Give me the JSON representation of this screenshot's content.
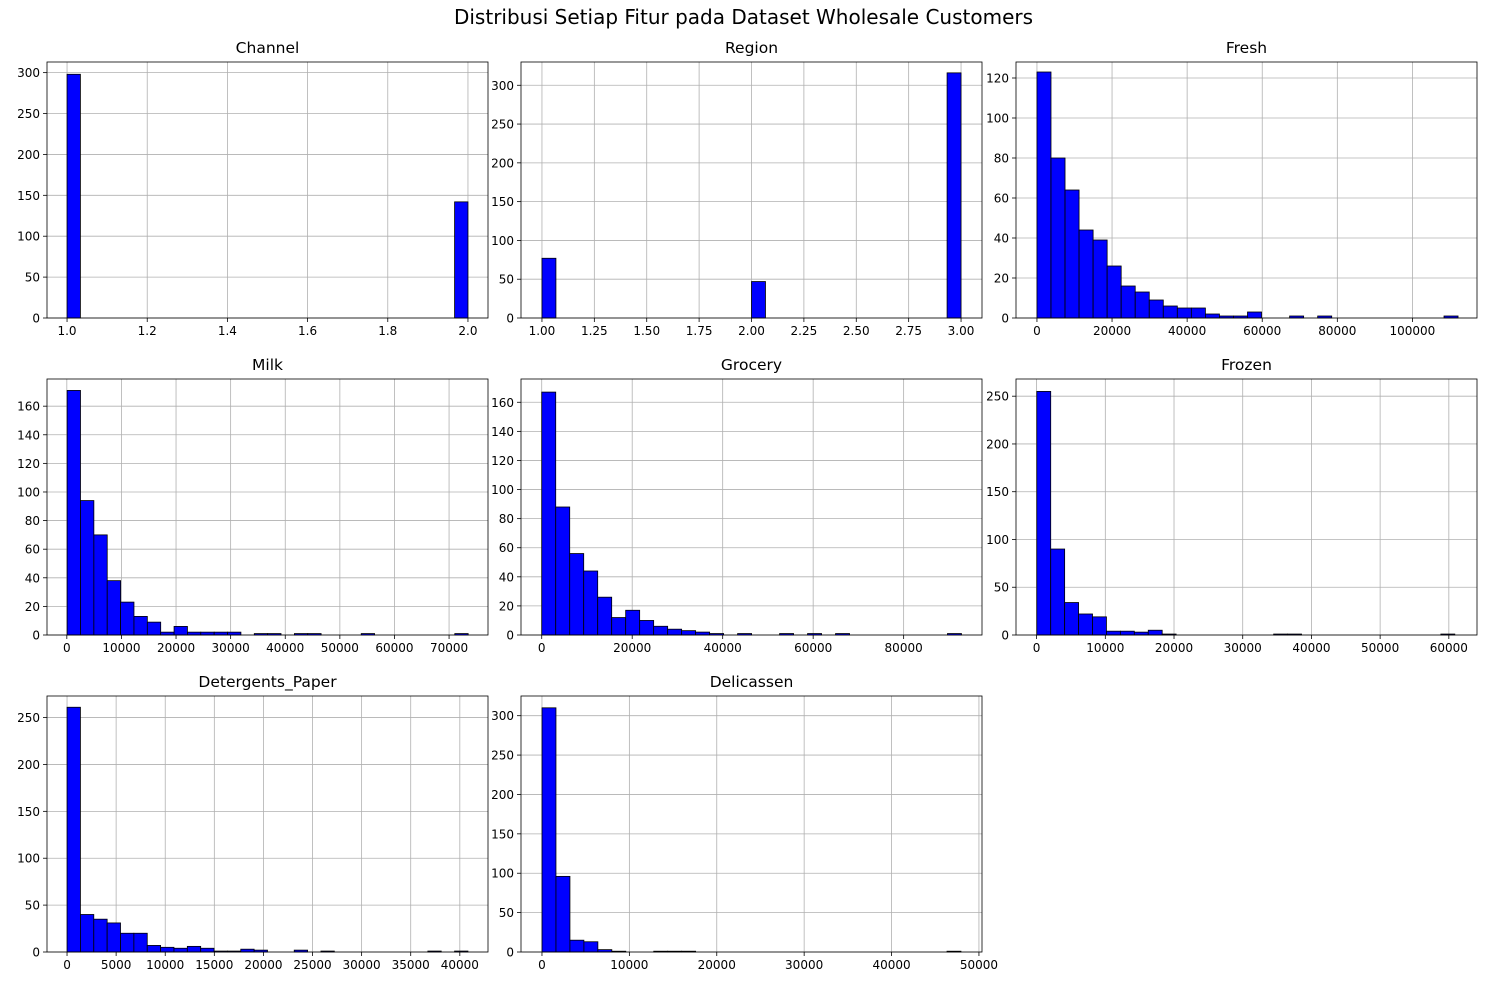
{
  "figure": {
    "title": "Distribusi Setiap Fitur pada Dataset Wholesale Customers",
    "bar_color": "#0000ff",
    "edge_color": "#000000",
    "grid_color": "#b0b0b0"
  },
  "chart_data": [
    {
      "type": "bar",
      "title": "Channel",
      "grid": true,
      "xlim": [
        0.95,
        2.05
      ],
      "ylim": [
        0,
        313
      ],
      "xticks": [
        1.0,
        1.2,
        1.4,
        1.6,
        1.8,
        2.0
      ],
      "xtick_labels": [
        "1.0",
        "1.2",
        "1.4",
        "1.6",
        "1.8",
        "2.0"
      ],
      "yticks": [
        0,
        50,
        100,
        150,
        200,
        250,
        300
      ],
      "bin_edges": [
        1.0,
        2.0
      ],
      "bins": 30,
      "counts": [
        298,
        0,
        0,
        0,
        0,
        0,
        0,
        0,
        0,
        0,
        0,
        0,
        0,
        0,
        0,
        0,
        0,
        0,
        0,
        0,
        0,
        0,
        0,
        0,
        0,
        0,
        0,
        0,
        0,
        142
      ]
    },
    {
      "type": "bar",
      "title": "Region",
      "grid": true,
      "xlim": [
        0.9,
        3.1
      ],
      "ylim": [
        0,
        330
      ],
      "xticks": [
        1.0,
        1.25,
        1.5,
        1.75,
        2.0,
        2.25,
        2.5,
        2.75,
        3.0
      ],
      "xtick_labels": [
        "1.00",
        "1.25",
        "1.50",
        "1.75",
        "2.00",
        "2.25",
        "2.50",
        "2.75",
        "3.00"
      ],
      "yticks": [
        0,
        50,
        100,
        150,
        200,
        250,
        300
      ],
      "bin_edges": [
        1.0,
        3.0
      ],
      "bins": 30,
      "counts": [
        77,
        0,
        0,
        0,
        0,
        0,
        0,
        0,
        0,
        0,
        0,
        0,
        0,
        0,
        0,
        47,
        0,
        0,
        0,
        0,
        0,
        0,
        0,
        0,
        0,
        0,
        0,
        0,
        0,
        316
      ]
    },
    {
      "type": "bar",
      "title": "Fresh",
      "grid": true,
      "xlim": [
        -5580,
        117200
      ],
      "ylim": [
        0,
        128
      ],
      "xticks": [
        0,
        20000,
        40000,
        60000,
        80000,
        100000
      ],
      "xtick_labels": [
        "0",
        "20000",
        "40000",
        "60000",
        "80000",
        "100000"
      ],
      "yticks": [
        0,
        20,
        40,
        60,
        80,
        100,
        120
      ],
      "bin_edges": [
        3,
        112151
      ],
      "bins": 30,
      "counts": [
        123,
        80,
        64,
        44,
        39,
        26,
        16,
        13,
        9,
        6,
        5,
        5,
        2,
        1,
        1,
        3,
        0,
        0,
        1,
        0,
        1,
        0,
        0,
        0,
        0,
        0,
        0,
        0,
        0,
        1
      ]
    },
    {
      "type": "bar",
      "title": "Milk",
      "grid": true,
      "xlim": [
        -3630,
        77130
      ],
      "ylim": [
        0,
        179
      ],
      "xticks": [
        0,
        10000,
        20000,
        30000,
        40000,
        50000,
        60000,
        70000
      ],
      "xtick_labels": [
        "0",
        "10000",
        "20000",
        "30000",
        "40000",
        "50000",
        "60000",
        "70000"
      ],
      "yticks": [
        0,
        20,
        40,
        60,
        80,
        100,
        120,
        140,
        160
      ],
      "bin_edges": [
        55,
        73498
      ],
      "bins": 30,
      "counts": [
        171,
        94,
        70,
        38,
        23,
        13,
        9,
        2,
        6,
        2,
        2,
        2,
        2,
        0,
        1,
        1,
        0,
        1,
        1,
        0,
        0,
        0,
        1,
        0,
        0,
        0,
        0,
        0,
        0,
        1
      ]
    },
    {
      "type": "bar",
      "title": "Grocery",
      "grid": true,
      "xlim": [
        -4580,
        97320
      ],
      "ylim": [
        0,
        176
      ],
      "xticks": [
        0,
        20000,
        40000,
        60000,
        80000
      ],
      "xtick_labels": [
        "0",
        "20000",
        "40000",
        "60000",
        "80000"
      ],
      "yticks": [
        0,
        20,
        40,
        60,
        80,
        100,
        120,
        140,
        160
      ],
      "bin_edges": [
        3,
        92780
      ],
      "bins": 30,
      "counts": [
        167,
        88,
        56,
        44,
        26,
        12,
        17,
        10,
        6,
        4,
        3,
        2,
        1,
        0,
        1,
        0,
        0,
        1,
        0,
        1,
        0,
        1,
        0,
        0,
        0,
        0,
        0,
        0,
        0,
        1
      ]
    },
    {
      "type": "bar",
      "title": "Frozen",
      "grid": true,
      "xlim": [
        -3000,
        64100
      ],
      "ylim": [
        0,
        268
      ],
      "xticks": [
        0,
        10000,
        20000,
        30000,
        40000,
        50000,
        60000
      ],
      "xtick_labels": [
        "0",
        "10000",
        "20000",
        "30000",
        "40000",
        "50000",
        "60000"
      ],
      "yticks": [
        0,
        50,
        100,
        150,
        200,
        250
      ],
      "bin_edges": [
        25,
        60869
      ],
      "bins": 30,
      "counts": [
        255,
        90,
        34,
        22,
        19,
        4,
        4,
        3,
        5,
        1,
        0,
        0,
        0,
        0,
        0,
        0,
        0,
        1,
        1,
        0,
        0,
        0,
        0,
        0,
        0,
        0,
        0,
        0,
        0,
        1
      ]
    },
    {
      "type": "bar",
      "title": "Detergents_Paper",
      "grid": true,
      "xlim": [
        -2040,
        42870
      ],
      "ylim": [
        0,
        273
      ],
      "xticks": [
        0,
        5000,
        10000,
        15000,
        20000,
        25000,
        30000,
        35000,
        40000
      ],
      "xtick_labels": [
        "0",
        "5000",
        "10000",
        "15000",
        "20000",
        "25000",
        "30000",
        "35000",
        "40000"
      ],
      "yticks": [
        0,
        50,
        100,
        150,
        200,
        250
      ],
      "bin_edges": [
        3,
        40827
      ],
      "bins": 30,
      "counts": [
        261,
        40,
        35,
        31,
        20,
        20,
        7,
        5,
        4,
        6,
        4,
        1,
        1,
        3,
        2,
        0,
        0,
        2,
        0,
        1,
        0,
        0,
        0,
        0,
        0,
        0,
        0,
        1,
        0,
        1
      ]
    },
    {
      "type": "bar",
      "title": "Delicassen",
      "grid": true,
      "xlim": [
        -2400,
        50350
      ],
      "ylim": [
        0,
        325
      ],
      "xticks": [
        0,
        10000,
        20000,
        30000,
        40000,
        50000
      ],
      "xtick_labels": [
        "0",
        "10000",
        "20000",
        "30000",
        "40000",
        "50000"
      ],
      "yticks": [
        0,
        50,
        100,
        150,
        200,
        250,
        300
      ],
      "bin_edges": [
        3,
        47943
      ],
      "bins": 30,
      "counts": [
        310,
        96,
        15,
        13,
        3,
        1,
        0,
        0,
        1,
        1,
        1,
        0,
        0,
        0,
        0,
        0,
        0,
        0,
        0,
        0,
        0,
        0,
        0,
        0,
        0,
        0,
        0,
        0,
        0,
        1
      ]
    }
  ]
}
